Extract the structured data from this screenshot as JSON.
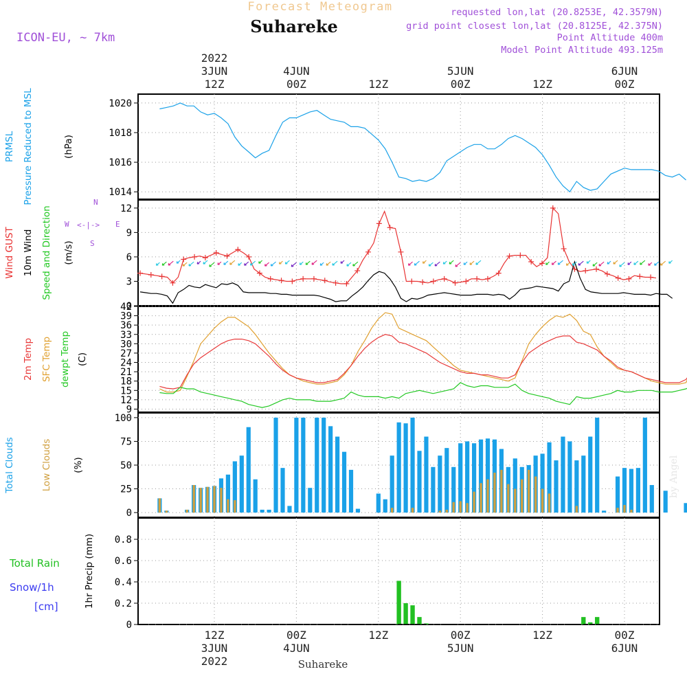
{
  "header": {
    "product_title": "Forecast Meteogram",
    "location": "Suhareke",
    "model": "ICON-EU, ~ 7km",
    "requested": "requested lon,lat (20.8253E, 42.3579N)",
    "grid_point": "grid point closest lon,lat (20.8125E, 42.375N)",
    "point_altitude": "Point Altitude 400m",
    "model_altitude": "Model Point Altitude 493.125m"
  },
  "time_axis": {
    "start": "2022-06-03T00Z",
    "step_hours": 1,
    "top_labels": [
      {
        "hour": 12,
        "lines": [
          "2022",
          "3JUN",
          "12Z"
        ]
      },
      {
        "hour": 24,
        "lines": [
          "4JUN",
          "00Z"
        ]
      },
      {
        "hour": 36,
        "lines": [
          "12Z"
        ]
      },
      {
        "hour": 48,
        "lines": [
          "5JUN",
          "00Z"
        ]
      },
      {
        "hour": 60,
        "lines": [
          "12Z"
        ]
      },
      {
        "hour": 72,
        "lines": [
          "6JUN",
          "00Z"
        ]
      }
    ],
    "bottom_labels": [
      {
        "hour": 12,
        "lines": [
          "12Z",
          "3JUN",
          "2022"
        ]
      },
      {
        "hour": 24,
        "lines": [
          "00Z",
          "4JUN"
        ]
      },
      {
        "hour": 36,
        "lines": [
          "12Z"
        ]
      },
      {
        "hour": 48,
        "lines": [
          "00Z",
          "5JUN"
        ]
      },
      {
        "hour": 60,
        "lines": [
          "12Z"
        ]
      },
      {
        "hour": 72,
        "lines": [
          "00Z",
          "6JUN"
        ]
      }
    ],
    "footer_location": "Suhareke"
  },
  "signature": "by Angel",
  "colors": {
    "pressure": "#1aa1e8",
    "gust": "#e83232",
    "wind": "#000000",
    "t2m": "#e83a3a",
    "sfc": "#e0a030",
    "dewpt": "#22c822",
    "total_cloud": "#1aa1e8",
    "low_cloud": "#d0a040",
    "rain": "#22c022",
    "snow": "#3a3af0",
    "header_orange": "#f0c890",
    "header_purple": "#a050d8",
    "compass": "#a050d8"
  },
  "chart_data": [
    {
      "id": "pressure",
      "type": "line",
      "ylabel_lines": [
        [
          "PRMSL",
          "#1aa1e8"
        ],
        [
          "Pressure Reduced to MSL",
          "#1aa1e8"
        ],
        [
          "(hPa)",
          "#000000"
        ]
      ],
      "ylim": [
        1013.5,
        1020.6
      ],
      "yticks": [
        1014,
        1016,
        1018,
        1020
      ],
      "grid": true,
      "series": [
        {
          "values": [
            1019.6,
            1019.7,
            1019.8,
            1020.0,
            1019.8,
            1019.8,
            1019.4,
            1019.2,
            1019.3,
            1019.0,
            1018.6,
            1017.7,
            1017.1,
            1016.7,
            1016.3,
            1016.6,
            1016.8,
            1017.8,
            1018.7,
            1019.0,
            1019.0,
            1019.2,
            1019.4,
            1019.5,
            1019.2,
            1018.9,
            1018.8,
            1018.7,
            1018.4,
            1018.4,
            1018.3,
            1017.9,
            1017.5,
            1016.9,
            1016.0,
            1015.0,
            1014.9,
            1014.7,
            1014.8,
            1014.7,
            1014.9,
            1015.3,
            1016.1,
            1016.4,
            1016.7,
            1017.0,
            1017.2,
            1017.2,
            1016.9,
            1016.9,
            1017.2,
            1017.6,
            1017.8,
            1017.6,
            1017.3,
            1017.0,
            1016.5,
            1015.8,
            1015.0,
            1014.4,
            1014.0,
            1014.7,
            1014.3,
            1014.1,
            1014.2,
            1014.7,
            1015.2,
            1015.4,
            1015.6,
            1015.5,
            1015.5,
            1015.5,
            1015.5,
            1015.4,
            1015.1,
            1015.0,
            1015.2,
            1014.8
          ]
        }
      ]
    },
    {
      "id": "wind",
      "type": "line",
      "ylabel_lines": [
        [
          "Wind GUST",
          "#e83232"
        ],
        [
          "10m Wind",
          "#000000"
        ],
        [
          "Speed and Direction",
          "#22c822"
        ],
        [
          "(m/s)",
          "#000000"
        ]
      ],
      "ylim": [
        0,
        13
      ],
      "yticks": [
        0,
        3,
        6,
        9,
        12
      ],
      "grid": true,
      "compass": {
        "n": "N",
        "s": "S",
        "e": "E",
        "w": "W"
      },
      "series": [
        {
          "name": "gust",
          "marker": "plus",
          "values": [
            4.0,
            3.9,
            3.8,
            3.7,
            3.6,
            3.5,
            2.8,
            3.5,
            5.7,
            5.9,
            6.0,
            6.1,
            5.9,
            6.2,
            6.5,
            6.3,
            6.1,
            6.5,
            6.9,
            6.5,
            6.0,
            4.5,
            4.0,
            3.5,
            3.3,
            3.2,
            3.1,
            3.0,
            3.0,
            3.2,
            3.3,
            3.3,
            3.3,
            3.2,
            3.1,
            2.9,
            2.8,
            2.7,
            2.7,
            3.5,
            4.3,
            5.6,
            6.6,
            7.7,
            10.1,
            11.6,
            9.6,
            9.5,
            6.6,
            3.0,
            3.0,
            3.0,
            2.9,
            2.8,
            3.0,
            3.2,
            3.3,
            3.1,
            2.8,
            2.9,
            3.0,
            3.3,
            3.3,
            3.2,
            3.3,
            3.6,
            4.0,
            5.2,
            6.1,
            6.2,
            6.2,
            6.2,
            5.4,
            4.8,
            5.2,
            5.9,
            12.0,
            11.3,
            7.0,
            5.4,
            4.5,
            4.2,
            4.3,
            4.4,
            4.5,
            4.3,
            3.9,
            3.7,
            3.4,
            3.2,
            3.3,
            3.7,
            3.6,
            3.5,
            3.5,
            3.4
          ]
        },
        {
          "name": "wind",
          "values": [
            1.7,
            1.6,
            1.5,
            1.5,
            1.4,
            1.2,
            0.3,
            1.6,
            2.0,
            2.5,
            2.3,
            2.2,
            2.6,
            2.4,
            2.2,
            2.7,
            2.6,
            2.8,
            2.5,
            1.7,
            1.6,
            1.6,
            1.6,
            1.6,
            1.5,
            1.5,
            1.4,
            1.4,
            1.3,
            1.3,
            1.3,
            1.3,
            1.3,
            1.2,
            1.0,
            0.8,
            0.5,
            0.6,
            0.6,
            1.2,
            1.7,
            2.3,
            3.1,
            3.8,
            4.2,
            4.0,
            3.3,
            2.3,
            0.9,
            0.5,
            0.9,
            0.8,
            1.0,
            1.3,
            1.4,
            1.5,
            1.6,
            1.5,
            1.4,
            1.3,
            1.3,
            1.3,
            1.4,
            1.4,
            1.4,
            1.3,
            1.4,
            1.3,
            0.8,
            1.3,
            2.0,
            2.1,
            2.2,
            2.4,
            2.3,
            2.2,
            2.1,
            1.8,
            2.7,
            3.0,
            5.4,
            3.4,
            2.0,
            1.7,
            1.6,
            1.5,
            1.5,
            1.5,
            1.5,
            1.6,
            1.5,
            1.4,
            1.4,
            1.4,
            1.3,
            1.5,
            1.4,
            1.4,
            0.9
          ]
        }
      ]
    },
    {
      "id": "temperature",
      "type": "line",
      "ylabel_lines": [
        [
          "2m Temp",
          "#e83a3a"
        ],
        [
          "SFC Temp",
          "#e0a030"
        ],
        [
          "dewpt Temp",
          "#22c822"
        ],
        [
          "(C)",
          "#000000"
        ]
      ],
      "ylim": [
        8,
        42
      ],
      "yticks": [
        9,
        12,
        15,
        18,
        21,
        24,
        27,
        30,
        33,
        36,
        39,
        42
      ],
      "grid": true,
      "series": [
        {
          "name": "sfc",
          "values": [
            15.5,
            14.5,
            14.5,
            15.0,
            19.5,
            24.5,
            30.0,
            32.5,
            35.0,
            37.0,
            38.5,
            38.5,
            37.0,
            35.5,
            33.0,
            30.0,
            27.0,
            24.5,
            22.0,
            20.0,
            19.0,
            18.0,
            17.5,
            17.0,
            17.0,
            17.5,
            18.0,
            20.0,
            23.0,
            27.5,
            31.0,
            35.0,
            38.0,
            40.0,
            39.5,
            35.0,
            34.0,
            33.0,
            32.0,
            31.0,
            29.0,
            27.0,
            25.0,
            23.0,
            21.5,
            21.0,
            20.5,
            20.0,
            19.5,
            19.0,
            18.5,
            18.0,
            19.0,
            24.5,
            30.0,
            33.0,
            35.5,
            37.5,
            39.0,
            38.5,
            39.5,
            37.5,
            34.0,
            33.0,
            29.0,
            26.0,
            24.0,
            22.0,
            21.5,
            21.0,
            20.0,
            19.0,
            18.0,
            17.5,
            17.0,
            17.0,
            17.0,
            17.5,
            22.5
          ]
        },
        {
          "name": "t2m",
          "values": [
            16.3,
            15.7,
            15.5,
            16.0,
            20.0,
            23.5,
            25.5,
            27.0,
            28.5,
            30.0,
            31.0,
            31.5,
            31.5,
            31.0,
            30.0,
            28.0,
            26.0,
            23.5,
            21.5,
            20.0,
            19.0,
            18.5,
            18.0,
            17.5,
            17.5,
            18.0,
            18.5,
            20.5,
            23.0,
            26.0,
            28.5,
            30.5,
            32.0,
            33.0,
            32.5,
            30.5,
            30.0,
            29.0,
            28.0,
            27.0,
            25.5,
            24.0,
            23.0,
            22.0,
            21.0,
            20.5,
            20.5,
            20.0,
            20.0,
            19.5,
            19.0,
            19.0,
            20.0,
            24.0,
            27.0,
            28.5,
            30.0,
            31.0,
            32.0,
            32.5,
            32.5,
            30.5,
            30.0,
            29.0,
            28.0,
            26.0,
            24.5,
            22.5,
            21.5,
            21.0,
            20.0,
            19.0,
            18.5,
            18.0,
            17.5,
            17.5,
            17.5,
            18.5,
            21.5
          ]
        },
        {
          "name": "dewpt",
          "values": [
            14.3,
            14.0,
            14.0,
            16.0,
            15.5,
            15.5,
            14.5,
            14.0,
            13.5,
            13.0,
            12.5,
            12.0,
            11.5,
            10.5,
            10.0,
            9.5,
            10.0,
            11.0,
            12.0,
            12.5,
            12.0,
            12.0,
            12.0,
            11.5,
            11.5,
            11.5,
            12.0,
            12.5,
            14.5,
            13.5,
            13.0,
            13.0,
            13.0,
            12.5,
            13.0,
            12.5,
            14.0,
            14.5,
            15.0,
            14.5,
            14.0,
            14.5,
            15.0,
            15.5,
            17.5,
            16.5,
            16.0,
            16.5,
            16.5,
            16.0,
            16.0,
            16.0,
            17.0,
            15.0,
            14.0,
            13.5,
            13.0,
            12.5,
            11.5,
            11.0,
            10.5,
            13.0,
            12.5,
            12.5,
            13.0,
            13.5,
            14.0,
            15.0,
            14.5,
            14.5,
            15.0,
            15.0,
            15.0,
            14.5,
            14.5,
            14.5,
            15.0,
            15.5,
            16.5
          ]
        }
      ]
    },
    {
      "id": "clouds",
      "type": "bar",
      "ylabel_lines": [
        [
          "Total Clouds",
          "#1aa1e8"
        ],
        [
          "Low Clouds",
          "#d0a040"
        ],
        [
          "(%)",
          "#000000"
        ]
      ],
      "ylim": [
        -5,
        105
      ],
      "yticks": [
        0,
        25,
        50,
        75,
        100
      ],
      "grid": true,
      "series": [
        {
          "name": "total",
          "values": [
            15,
            2,
            0,
            0,
            3,
            29,
            26,
            27,
            28,
            36,
            40,
            54,
            60,
            90,
            35,
            3,
            3,
            100,
            47,
            7,
            100,
            100,
            26,
            100,
            100,
            91,
            80,
            64,
            45,
            4,
            0,
            0,
            20,
            14,
            60,
            95,
            94,
            100,
            65,
            80,
            48,
            60,
            68,
            48,
            73,
            75,
            73,
            77,
            78,
            77,
            67,
            48,
            57,
            48,
            50,
            60,
            62,
            74,
            55,
            80,
            75,
            55,
            60,
            80,
            100,
            2,
            0,
            38,
            47,
            46,
            47,
            100,
            29,
            0,
            23,
            0,
            0,
            10,
            100
          ]
        },
        {
          "name": "low",
          "values": [
            15,
            2,
            0,
            0,
            3,
            29,
            26,
            27,
            28,
            26,
            14,
            13,
            0,
            0,
            0,
            0,
            0,
            0,
            0,
            0,
            0,
            0,
            0,
            0,
            0,
            0,
            0,
            0,
            0,
            0,
            0,
            0,
            0,
            0,
            5,
            0,
            0,
            5,
            0,
            0,
            0,
            2,
            3,
            11,
            12,
            10,
            22,
            31,
            35,
            42,
            45,
            30,
            25,
            35,
            45,
            38,
            25,
            20,
            0,
            0,
            0,
            7,
            0,
            0,
            0,
            0,
            0,
            5,
            8,
            3,
            0,
            0,
            0,
            0,
            0,
            0,
            0,
            0,
            0
          ]
        }
      ]
    },
    {
      "id": "precip",
      "type": "bar",
      "ylabel_lines": [
        [
          "1hr Precip (mm)",
          "#000000"
        ]
      ],
      "legend_left": [
        [
          "Total  Rain",
          "#22c022"
        ],
        [
          "Snow/1h",
          "#3a3af0"
        ],
        [
          "[cm]",
          "#3a3af0"
        ]
      ],
      "ylim": [
        0,
        1.0
      ],
      "yticks": [
        0,
        0.2,
        0.4,
        0.6,
        0.8
      ],
      "ytick_labels": [
        "0",
        "0.2",
        "0.4",
        "0.6",
        "0.8"
      ],
      "grid": true,
      "series": [
        {
          "name": "rain",
          "values": [
            0,
            0,
            0,
            0,
            0,
            0,
            0,
            0,
            0,
            0,
            0,
            0,
            0,
            0,
            0,
            0,
            0,
            0,
            0,
            0,
            0,
            0,
            0,
            0,
            0,
            0,
            0,
            0,
            0,
            0,
            0,
            0,
            0,
            0,
            0,
            0.41,
            0.2,
            0.18,
            0.07,
            0.01,
            0,
            0,
            0,
            0,
            0,
            0,
            0,
            0,
            0,
            0,
            0,
            0,
            0,
            0,
            0,
            0,
            0,
            0,
            0,
            0,
            0,
            0,
            0.07,
            0.02,
            0.07,
            0,
            0,
            0,
            0,
            0,
            0,
            0,
            0,
            0,
            0,
            0,
            0,
            0,
            0
          ]
        }
      ]
    }
  ]
}
